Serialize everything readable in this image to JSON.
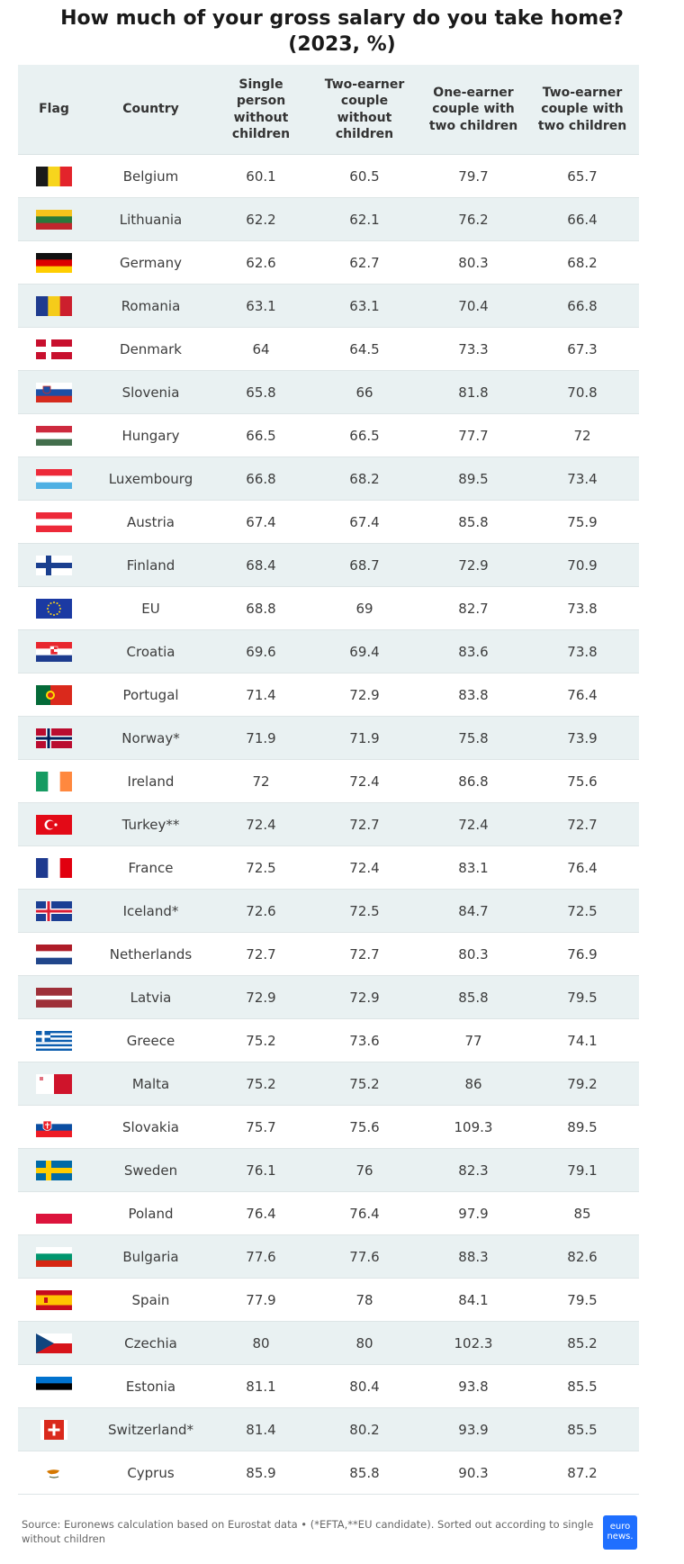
{
  "title": "How much of your gross salary do you take home?",
  "subtitle": "(2023, %)",
  "headers": {
    "flag": "Flag",
    "country": "Country",
    "col1": "Single person without children",
    "col2": "Two-earner couple without children",
    "col3": "One-earner couple with two children",
    "col4": "Two-earner couple with two children"
  },
  "rows": [
    {
      "country": "Belgium",
      "flag_icon": "belgium-flag-icon",
      "v1": "60.1",
      "v2": "60.5",
      "v3": "79.7",
      "v4": "65.7"
    },
    {
      "country": "Lithuania",
      "flag_icon": "lithuania-flag-icon",
      "v1": "62.2",
      "v2": "62.1",
      "v3": "76.2",
      "v4": "66.4"
    },
    {
      "country": "Germany",
      "flag_icon": "germany-flag-icon",
      "v1": "62.6",
      "v2": "62.7",
      "v3": "80.3",
      "v4": "68.2"
    },
    {
      "country": "Romania",
      "flag_icon": "romania-flag-icon",
      "v1": "63.1",
      "v2": "63.1",
      "v3": "70.4",
      "v4": "66.8"
    },
    {
      "country": "Denmark",
      "flag_icon": "denmark-flag-icon",
      "v1": "64",
      "v2": "64.5",
      "v3": "73.3",
      "v4": "67.3"
    },
    {
      "country": "Slovenia",
      "flag_icon": "slovenia-flag-icon",
      "v1": "65.8",
      "v2": "66",
      "v3": "81.8",
      "v4": "70.8"
    },
    {
      "country": "Hungary",
      "flag_icon": "hungary-flag-icon",
      "v1": "66.5",
      "v2": "66.5",
      "v3": "77.7",
      "v4": "72"
    },
    {
      "country": "Luxembourg",
      "flag_icon": "luxembourg-flag-icon",
      "v1": "66.8",
      "v2": "68.2",
      "v3": "89.5",
      "v4": "73.4"
    },
    {
      "country": "Austria",
      "flag_icon": "austria-flag-icon",
      "v1": "67.4",
      "v2": "67.4",
      "v3": "85.8",
      "v4": "75.9"
    },
    {
      "country": "Finland",
      "flag_icon": "finland-flag-icon",
      "v1": "68.4",
      "v2": "68.7",
      "v3": "72.9",
      "v4": "70.9"
    },
    {
      "country": "EU",
      "flag_icon": "eu-flag-icon",
      "v1": "68.8",
      "v2": "69",
      "v3": "82.7",
      "v4": "73.8"
    },
    {
      "country": "Croatia",
      "flag_icon": "croatia-flag-icon",
      "v1": "69.6",
      "v2": "69.4",
      "v3": "83.6",
      "v4": "73.8"
    },
    {
      "country": "Portugal",
      "flag_icon": "portugal-flag-icon",
      "v1": "71.4",
      "v2": "72.9",
      "v3": "83.8",
      "v4": "76.4"
    },
    {
      "country": "Norway*",
      "flag_icon": "norway-flag-icon",
      "v1": "71.9",
      "v2": "71.9",
      "v3": "75.8",
      "v4": "73.9"
    },
    {
      "country": "Ireland",
      "flag_icon": "ireland-flag-icon",
      "v1": "72",
      "v2": "72.4",
      "v3": "86.8",
      "v4": "75.6"
    },
    {
      "country": "Turkey**",
      "flag_icon": "turkey-flag-icon",
      "v1": "72.4",
      "v2": "72.7",
      "v3": "72.4",
      "v4": "72.7"
    },
    {
      "country": "France",
      "flag_icon": "france-flag-icon",
      "v1": "72.5",
      "v2": "72.4",
      "v3": "83.1",
      "v4": "76.4"
    },
    {
      "country": "Iceland*",
      "flag_icon": "iceland-flag-icon",
      "v1": "72.6",
      "v2": "72.5",
      "v3": "84.7",
      "v4": "72.5"
    },
    {
      "country": "Netherlands",
      "flag_icon": "netherlands-flag-icon",
      "v1": "72.7",
      "v2": "72.7",
      "v3": "80.3",
      "v4": "76.9"
    },
    {
      "country": "Latvia",
      "flag_icon": "latvia-flag-icon",
      "v1": "72.9",
      "v2": "72.9",
      "v3": "85.8",
      "v4": "79.5"
    },
    {
      "country": "Greece",
      "flag_icon": "greece-flag-icon",
      "v1": "75.2",
      "v2": "73.6",
      "v3": "77",
      "v4": "74.1"
    },
    {
      "country": "Malta",
      "flag_icon": "malta-flag-icon",
      "v1": "75.2",
      "v2": "75.2",
      "v3": "86",
      "v4": "79.2"
    },
    {
      "country": "Slovakia",
      "flag_icon": "slovakia-flag-icon",
      "v1": "75.7",
      "v2": "75.6",
      "v3": "109.3",
      "v4": "89.5"
    },
    {
      "country": "Sweden",
      "flag_icon": "sweden-flag-icon",
      "v1": "76.1",
      "v2": "76",
      "v3": "82.3",
      "v4": "79.1"
    },
    {
      "country": "Poland",
      "flag_icon": "poland-flag-icon",
      "v1": "76.4",
      "v2": "76.4",
      "v3": "97.9",
      "v4": "85"
    },
    {
      "country": "Bulgaria",
      "flag_icon": "bulgaria-flag-icon",
      "v1": "77.6",
      "v2": "77.6",
      "v3": "88.3",
      "v4": "82.6"
    },
    {
      "country": "Spain",
      "flag_icon": "spain-flag-icon",
      "v1": "77.9",
      "v2": "78",
      "v3": "84.1",
      "v4": "79.5"
    },
    {
      "country": "Czechia",
      "flag_icon": "czechia-flag-icon",
      "v1": "80",
      "v2": "80",
      "v3": "102.3",
      "v4": "85.2"
    },
    {
      "country": "Estonia",
      "flag_icon": "estonia-flag-icon",
      "v1": "81.1",
      "v2": "80.4",
      "v3": "93.8",
      "v4": "85.5"
    },
    {
      "country": "Switzerland*",
      "flag_icon": "switzerland-flag-icon",
      "v1": "81.4",
      "v2": "80.2",
      "v3": "93.9",
      "v4": "85.5"
    },
    {
      "country": "Cyprus",
      "flag_icon": "cyprus-flag-icon",
      "v1": "85.9",
      "v2": "85.8",
      "v3": "90.3",
      "v4": "87.2"
    }
  ],
  "source": "Source: Euronews calculation based on Eurostat data • (*EFTA,**EU candidate). Sorted out according to single without children",
  "logo": {
    "line1": "euro",
    "line2": "news."
  },
  "colors": {
    "header_bg": "#e9f1f2",
    "alt_row_bg": "#e9f1f2",
    "logo_bg": "#1f6fff"
  }
}
